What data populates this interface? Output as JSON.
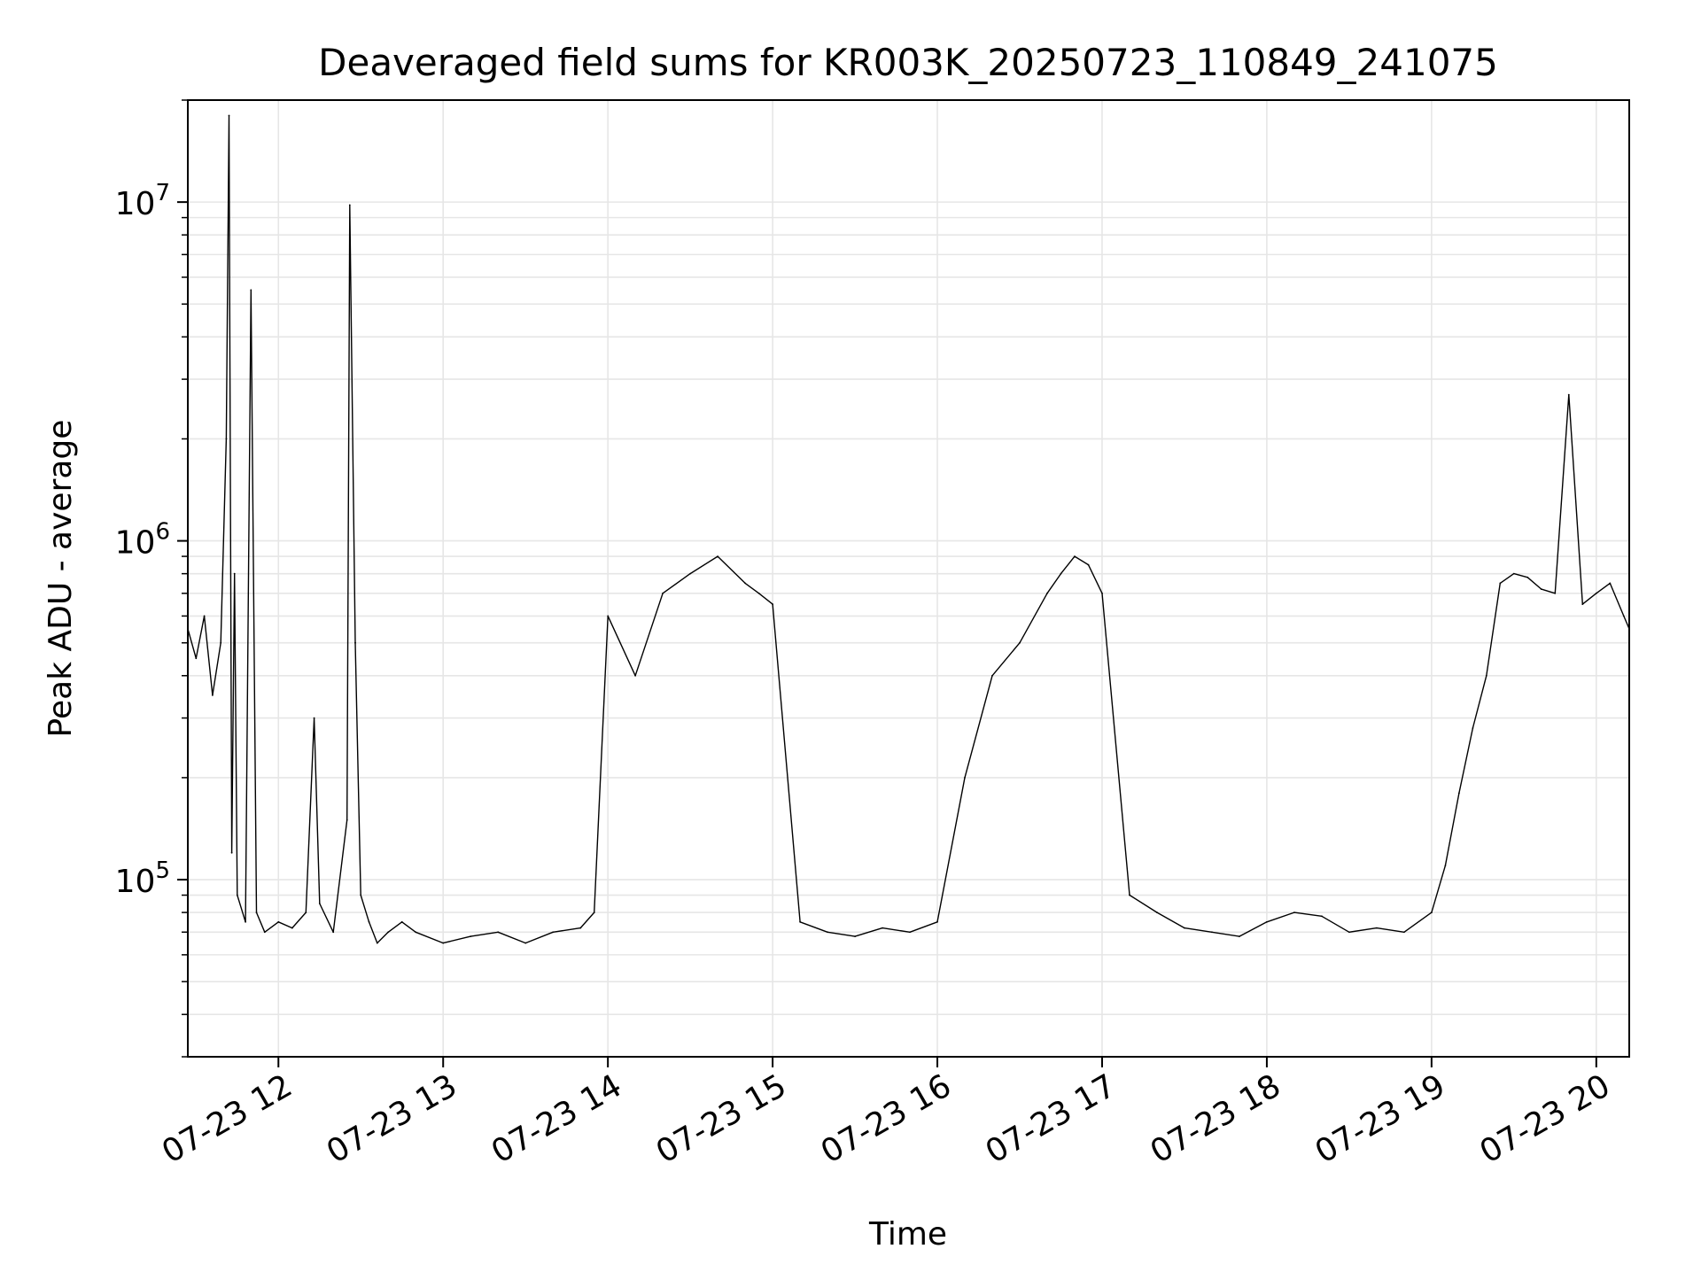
{
  "chart_data": {
    "type": "line",
    "title": "Deaveraged field sums for KR003K_20250723_110849_241075",
    "xlabel": "Time",
    "ylabel": "Peak ADU - average",
    "yscale": "log",
    "ylim": [
      30000,
      20000000
    ],
    "xlim": [
      "2025-07-23 11:27",
      "2025-07-23 20:12"
    ],
    "grid": true,
    "legend": "none",
    "line_color": "#000000",
    "grid_color": "#e6e6e6",
    "x_ticks": [
      {
        "t": "2025-07-23 12:00",
        "label": "07-23 12"
      },
      {
        "t": "2025-07-23 13:00",
        "label": "07-23 13"
      },
      {
        "t": "2025-07-23 14:00",
        "label": "07-23 14"
      },
      {
        "t": "2025-07-23 15:00",
        "label": "07-23 15"
      },
      {
        "t": "2025-07-23 16:00",
        "label": "07-23 16"
      },
      {
        "t": "2025-07-23 17:00",
        "label": "07-23 17"
      },
      {
        "t": "2025-07-23 18:00",
        "label": "07-23 18"
      },
      {
        "t": "2025-07-23 19:00",
        "label": "07-23 19"
      },
      {
        "t": "2025-07-23 20:00",
        "label": "07-23 20"
      }
    ],
    "y_ticks": [
      {
        "value": 100000,
        "base": "10",
        "exp": "5"
      },
      {
        "value": 1000000,
        "base": "10",
        "exp": "6"
      },
      {
        "value": 10000000,
        "base": "10",
        "exp": "7"
      }
    ],
    "series": [
      {
        "x": [
          "2025-07-23 11:27",
          "2025-07-23 11:30",
          "2025-07-23 11:33",
          "2025-07-23 11:36",
          "2025-07-23 11:39",
          "2025-07-23 11:41",
          "2025-07-23 11:42",
          "2025-07-23 11:43",
          "2025-07-23 11:44",
          "2025-07-23 11:45",
          "2025-07-23 11:48",
          "2025-07-23 11:50",
          "2025-07-23 11:52",
          "2025-07-23 11:55",
          "2025-07-23 12:00",
          "2025-07-23 12:05",
          "2025-07-23 12:10",
          "2025-07-23 12:13",
          "2025-07-23 12:15",
          "2025-07-23 12:20",
          "2025-07-23 12:25",
          "2025-07-23 12:26",
          "2025-07-23 12:28",
          "2025-07-23 12:30",
          "2025-07-23 12:33",
          "2025-07-23 12:36",
          "2025-07-23 12:40",
          "2025-07-23 12:45",
          "2025-07-23 12:50",
          "2025-07-23 13:00",
          "2025-07-23 13:10",
          "2025-07-23 13:20",
          "2025-07-23 13:30",
          "2025-07-23 13:40",
          "2025-07-23 13:50",
          "2025-07-23 13:55",
          "2025-07-23 14:00",
          "2025-07-23 14:10",
          "2025-07-23 14:20",
          "2025-07-23 14:30",
          "2025-07-23 14:40",
          "2025-07-23 14:50",
          "2025-07-23 14:55",
          "2025-07-23 15:00",
          "2025-07-23 15:10",
          "2025-07-23 15:20",
          "2025-07-23 15:30",
          "2025-07-23 15:40",
          "2025-07-23 15:50",
          "2025-07-23 16:00",
          "2025-07-23 16:10",
          "2025-07-23 16:20",
          "2025-07-23 16:30",
          "2025-07-23 16:40",
          "2025-07-23 16:45",
          "2025-07-23 16:50",
          "2025-07-23 16:55",
          "2025-07-23 17:00",
          "2025-07-23 17:10",
          "2025-07-23 17:20",
          "2025-07-23 17:30",
          "2025-07-23 17:40",
          "2025-07-23 17:50",
          "2025-07-23 18:00",
          "2025-07-23 18:10",
          "2025-07-23 18:20",
          "2025-07-23 18:30",
          "2025-07-23 18:40",
          "2025-07-23 18:50",
          "2025-07-23 19:00",
          "2025-07-23 19:05",
          "2025-07-23 19:10",
          "2025-07-23 19:15",
          "2025-07-23 19:20",
          "2025-07-23 19:25",
          "2025-07-23 19:30",
          "2025-07-23 19:35",
          "2025-07-23 19:40",
          "2025-07-23 19:45",
          "2025-07-23 19:50",
          "2025-07-23 19:55",
          "2025-07-23 20:00",
          "2025-07-23 20:05",
          "2025-07-23 20:10",
          "2025-07-23 20:12"
        ],
        "y": [
          550000,
          450000,
          600000,
          350000,
          500000,
          2000000,
          18000000,
          120000,
          800000,
          90000,
          75000,
          5500000,
          80000,
          70000,
          75000,
          72000,
          80000,
          300000,
          85000,
          70000,
          150000,
          9800000,
          500000,
          90000,
          75000,
          65000,
          70000,
          75000,
          70000,
          65000,
          68000,
          70000,
          65000,
          70000,
          72000,
          80000,
          600000,
          400000,
          700000,
          800000,
          900000,
          750000,
          700000,
          650000,
          75000,
          70000,
          68000,
          72000,
          70000,
          75000,
          200000,
          400000,
          500000,
          700000,
          800000,
          900000,
          850000,
          700000,
          90000,
          80000,
          72000,
          70000,
          68000,
          75000,
          80000,
          78000,
          70000,
          72000,
          70000,
          80000,
          110000,
          180000,
          280000,
          400000,
          750000,
          800000,
          780000,
          720000,
          700000,
          2700000,
          650000,
          700000,
          750000,
          600000,
          550000
        ]
      }
    ]
  }
}
